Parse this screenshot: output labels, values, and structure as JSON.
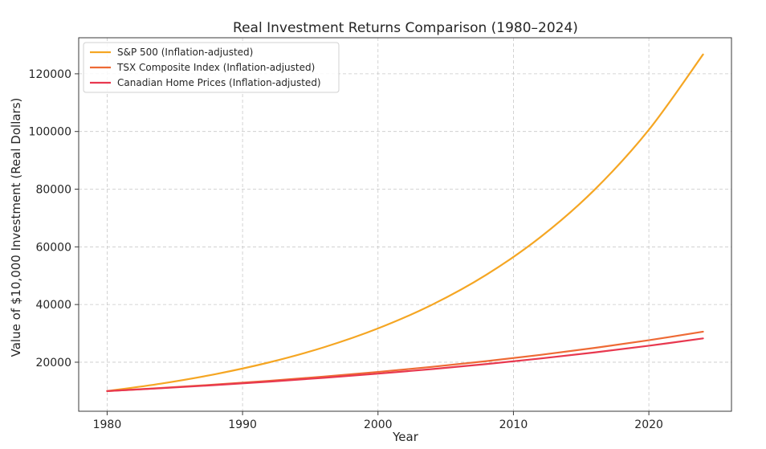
{
  "chart_data": {
    "type": "line",
    "title": "Real Investment Returns Comparison (1980–2024)",
    "xlabel": "Year",
    "ylabel": "Value of $10,000 Investment (Real Dollars)",
    "xlim": [
      1977.9,
      2026.1
    ],
    "ylim": [
      3000,
      132500
    ],
    "xticks": [
      1980,
      1990,
      2000,
      2010,
      2020
    ],
    "yticks": [
      20000,
      40000,
      60000,
      80000,
      100000,
      120000
    ],
    "grid": true,
    "grid_style": "dashed",
    "legend_position": "top-left",
    "x": [
      1980,
      1984,
      1988,
      1992,
      1996,
      2000,
      2004,
      2008,
      2012,
      2016,
      2020,
      2024
    ],
    "series": [
      {
        "name": "S&P 500 (Inflation-adjusted)",
        "color": "#f5a623",
        "values": [
          10000,
          12596,
          15867,
          19987,
          25177,
          31714,
          39949,
          50322,
          63388,
          79848,
          100580,
          126699
        ]
      },
      {
        "name": "TSX Composite Index (Inflation-adjusted)",
        "color": "#ee6a35",
        "values": [
          10000,
          11070,
          12254,
          13565,
          15017,
          16623,
          18402,
          20370,
          22550,
          24962,
          27633,
          30590
        ]
      },
      {
        "name": "Canadian Home Prices (Inflation-adjusted)",
        "color": "#e8384f",
        "values": [
          10000,
          10990,
          12079,
          13275,
          14590,
          16035,
          17623,
          19368,
          21286,
          23394,
          25710,
          28256
        ]
      }
    ]
  }
}
